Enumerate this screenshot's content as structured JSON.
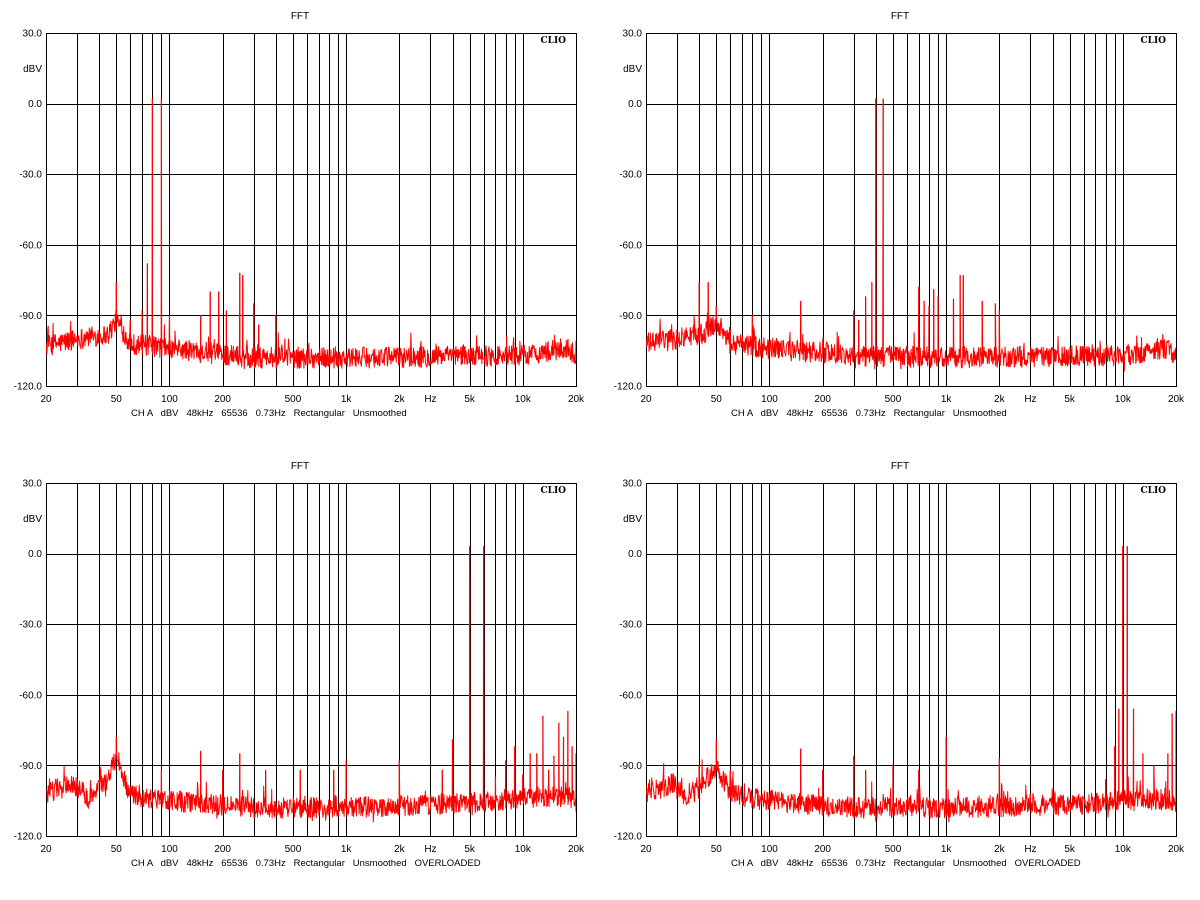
{
  "colors": {
    "trace": "#ff0000",
    "grid": "#000000",
    "background": "#ffffff"
  },
  "chart_data": [
    {
      "type": "line",
      "title": "FFT",
      "brand": "CLIO",
      "ylabel": "dBV",
      "xlabel": "Hz",
      "caption": "CH A   dBV   48kHz   65536   0.73Hz   Rectangular   Unsmoothed",
      "x_scale": "log",
      "xlim": [
        20,
        20000
      ],
      "ylim": [
        -120,
        30
      ],
      "yticks": [
        30.0,
        0.0,
        -30.0,
        -60.0,
        -90.0,
        -120.0
      ],
      "ytick_labels": [
        "30.0",
        "0.0",
        "-30.0",
        "-60.0",
        "-90.0",
        "-120.0"
      ],
      "xticks": [
        20,
        50,
        100,
        200,
        500,
        1000,
        2000,
        5000,
        10000,
        20000
      ],
      "xtick_labels": [
        "20",
        "50",
        "100",
        "200",
        "500",
        "1k",
        "2k",
        "5k",
        "10k",
        "20k"
      ],
      "noise_floor": [
        [
          20,
          -103
        ],
        [
          30,
          -100
        ],
        [
          45,
          -98
        ],
        [
          50,
          -92
        ],
        [
          60,
          -102
        ],
        [
          100,
          -104
        ],
        [
          300,
          -108
        ],
        [
          1000,
          -108
        ],
        [
          10000,
          -107
        ],
        [
          18000,
          -104
        ],
        [
          20000,
          -107
        ]
      ],
      "peaks": [
        [
          50,
          -76
        ],
        [
          60,
          -92
        ],
        [
          70,
          -88
        ],
        [
          75,
          -68
        ],
        [
          80,
          2
        ],
        [
          90,
          2
        ],
        [
          100,
          -90
        ],
        [
          150,
          -90
        ],
        [
          170,
          -80
        ],
        [
          190,
          -80
        ],
        [
          210,
          -88
        ],
        [
          250,
          -72
        ],
        [
          260,
          -73
        ],
        [
          300,
          -85
        ],
        [
          320,
          -94
        ],
        [
          400,
          -90
        ],
        [
          450,
          -100
        ]
      ],
      "series": [
        {
          "name": "",
          "values": []
        }
      ]
    },
    {
      "type": "line",
      "title": "FFT",
      "brand": "CLIO",
      "ylabel": "dBV",
      "xlabel": "Hz",
      "caption": "CH A   dBV   48kHz   65536   0.73Hz   Rectangular   Unsmoothed",
      "x_scale": "log",
      "xlim": [
        20,
        20000
      ],
      "ylim": [
        -120,
        30
      ],
      "yticks": [
        30.0,
        0.0,
        -30.0,
        -60.0,
        -90.0,
        -120.0
      ],
      "ytick_labels": [
        "30.0",
        "0.0",
        "-30.0",
        "-60.0",
        "-90.0",
        "-120.0"
      ],
      "xticks": [
        20,
        50,
        100,
        200,
        500,
        1000,
        2000,
        5000,
        10000,
        20000
      ],
      "xtick_labels": [
        "20",
        "50",
        "100",
        "200",
        "500",
        "1k",
        "2k",
        "5k",
        "10k",
        "20k"
      ],
      "noise_floor": [
        [
          20,
          -102
        ],
        [
          30,
          -100
        ],
        [
          45,
          -97
        ],
        [
          50,
          -92
        ],
        [
          60,
          -102
        ],
        [
          100,
          -104
        ],
        [
          300,
          -107
        ],
        [
          1000,
          -108
        ],
        [
          10000,
          -107
        ],
        [
          18000,
          -104
        ],
        [
          20000,
          -108
        ]
      ],
      "peaks": [
        [
          40,
          -76
        ],
        [
          45,
          -76
        ],
        [
          50,
          -86
        ],
        [
          60,
          -96
        ],
        [
          80,
          -90
        ],
        [
          150,
          -84
        ],
        [
          300,
          -88
        ],
        [
          320,
          -92
        ],
        [
          350,
          -82
        ],
        [
          380,
          -76
        ],
        [
          400,
          2
        ],
        [
          440,
          2
        ],
        [
          700,
          -78
        ],
        [
          750,
          -84
        ],
        [
          800,
          -86
        ],
        [
          850,
          -79
        ],
        [
          900,
          -82
        ],
        [
          1100,
          -83
        ],
        [
          1200,
          -73
        ],
        [
          1250,
          -73
        ],
        [
          1600,
          -84
        ],
        [
          1900,
          -85
        ],
        [
          2000,
          -88
        ]
      ],
      "series": [
        {
          "name": "",
          "values": []
        }
      ]
    },
    {
      "type": "line",
      "title": "FFT",
      "brand": "CLIO",
      "ylabel": "dBV",
      "xlabel": "Hz",
      "caption": "CH A   dBV   48kHz   65536   0.73Hz   Rectangular   Unsmoothed   OVERLOADED",
      "x_scale": "log",
      "xlim": [
        20,
        20000
      ],
      "ylim": [
        -120,
        30
      ],
      "yticks": [
        30.0,
        0.0,
        -30.0,
        -60.0,
        -90.0,
        -120.0
      ],
      "ytick_labels": [
        "30.0",
        "0.0",
        "-30.0",
        "-60.0",
        "-90.0",
        "-120.0"
      ],
      "xticks": [
        20,
        50,
        100,
        200,
        500,
        1000,
        2000,
        5000,
        10000,
        20000
      ],
      "xtick_labels": [
        "20",
        "50",
        "100",
        "200",
        "500",
        "1k",
        "2k",
        "5k",
        "10k",
        "20k"
      ],
      "noise_floor": [
        [
          20,
          -102
        ],
        [
          28,
          -97
        ],
        [
          35,
          -104
        ],
        [
          45,
          -96
        ],
        [
          50,
          -86
        ],
        [
          60,
          -103
        ],
        [
          100,
          -105
        ],
        [
          300,
          -108
        ],
        [
          1000,
          -108
        ],
        [
          5000,
          -106
        ],
        [
          10000,
          -104
        ],
        [
          18000,
          -103
        ],
        [
          20000,
          -106
        ]
      ],
      "peaks": [
        [
          50,
          -78
        ],
        [
          90,
          -92
        ],
        [
          150,
          -84
        ],
        [
          200,
          -92
        ],
        [
          250,
          -85
        ],
        [
          350,
          -92
        ],
        [
          550,
          -92
        ],
        [
          850,
          -92
        ],
        [
          1000,
          -88
        ],
        [
          2000,
          -88
        ],
        [
          3500,
          -92
        ],
        [
          4000,
          -79
        ],
        [
          5000,
          3
        ],
        [
          6000,
          3
        ],
        [
          7000,
          -95
        ],
        [
          8000,
          -88
        ],
        [
          9000,
          -82
        ],
        [
          10000,
          -94
        ],
        [
          11000,
          -85
        ],
        [
          12000,
          -85
        ],
        [
          13000,
          -69
        ],
        [
          14000,
          -92
        ],
        [
          15000,
          -86
        ],
        [
          16000,
          -72
        ],
        [
          17000,
          -78
        ],
        [
          18000,
          -67
        ],
        [
          19000,
          -82
        ],
        [
          20000,
          -85
        ]
      ],
      "series": [
        {
          "name": "",
          "values": []
        }
      ]
    },
    {
      "type": "line",
      "title": "FFT",
      "brand": "CLIO",
      "ylabel": "dBV",
      "xlabel": "Hz",
      "caption": "CH A   dBV   48kHz   65536   0.73Hz   Rectangular   Unsmoothed   OVERLOADED",
      "x_scale": "log",
      "xlim": [
        20,
        20000
      ],
      "ylim": [
        -120,
        30
      ],
      "yticks": [
        30.0,
        0.0,
        -30.0,
        -60.0,
        -90.0,
        -120.0
      ],
      "ytick_labels": [
        "30.0",
        "0.0",
        "-30.0",
        "-60.0",
        "-90.0",
        "-120.0"
      ],
      "xticks": [
        20,
        50,
        100,
        200,
        500,
        1000,
        2000,
        5000,
        10000,
        20000
      ],
      "xtick_labels": [
        "20",
        "50",
        "100",
        "200",
        "500",
        "1k",
        "2k",
        "5k",
        "10k",
        "20k"
      ],
      "noise_floor": [
        [
          20,
          -102
        ],
        [
          28,
          -98
        ],
        [
          35,
          -104
        ],
        [
          45,
          -95
        ],
        [
          50,
          -90
        ],
        [
          60,
          -102
        ],
        [
          100,
          -105
        ],
        [
          300,
          -108
        ],
        [
          1000,
          -108
        ],
        [
          5000,
          -107
        ],
        [
          10000,
          -105
        ],
        [
          18000,
          -104
        ],
        [
          20000,
          -108
        ]
      ],
      "peaks": [
        [
          40,
          -90
        ],
        [
          50,
          -79
        ],
        [
          60,
          -92
        ],
        [
          150,
          -83
        ],
        [
          200,
          -92
        ],
        [
          300,
          -86
        ],
        [
          350,
          -92
        ],
        [
          500,
          -90
        ],
        [
          700,
          -92
        ],
        [
          1000,
          -78
        ],
        [
          2000,
          -87
        ],
        [
          8000,
          -96
        ],
        [
          9000,
          -82
        ],
        [
          9500,
          -66
        ],
        [
          10000,
          3
        ],
        [
          10600,
          3
        ],
        [
          11500,
          -66
        ],
        [
          13000,
          -85
        ],
        [
          15000,
          -90
        ],
        [
          18000,
          -85
        ],
        [
          19000,
          -68
        ],
        [
          20000,
          -67
        ]
      ],
      "series": [
        {
          "name": "",
          "values": []
        }
      ]
    }
  ]
}
